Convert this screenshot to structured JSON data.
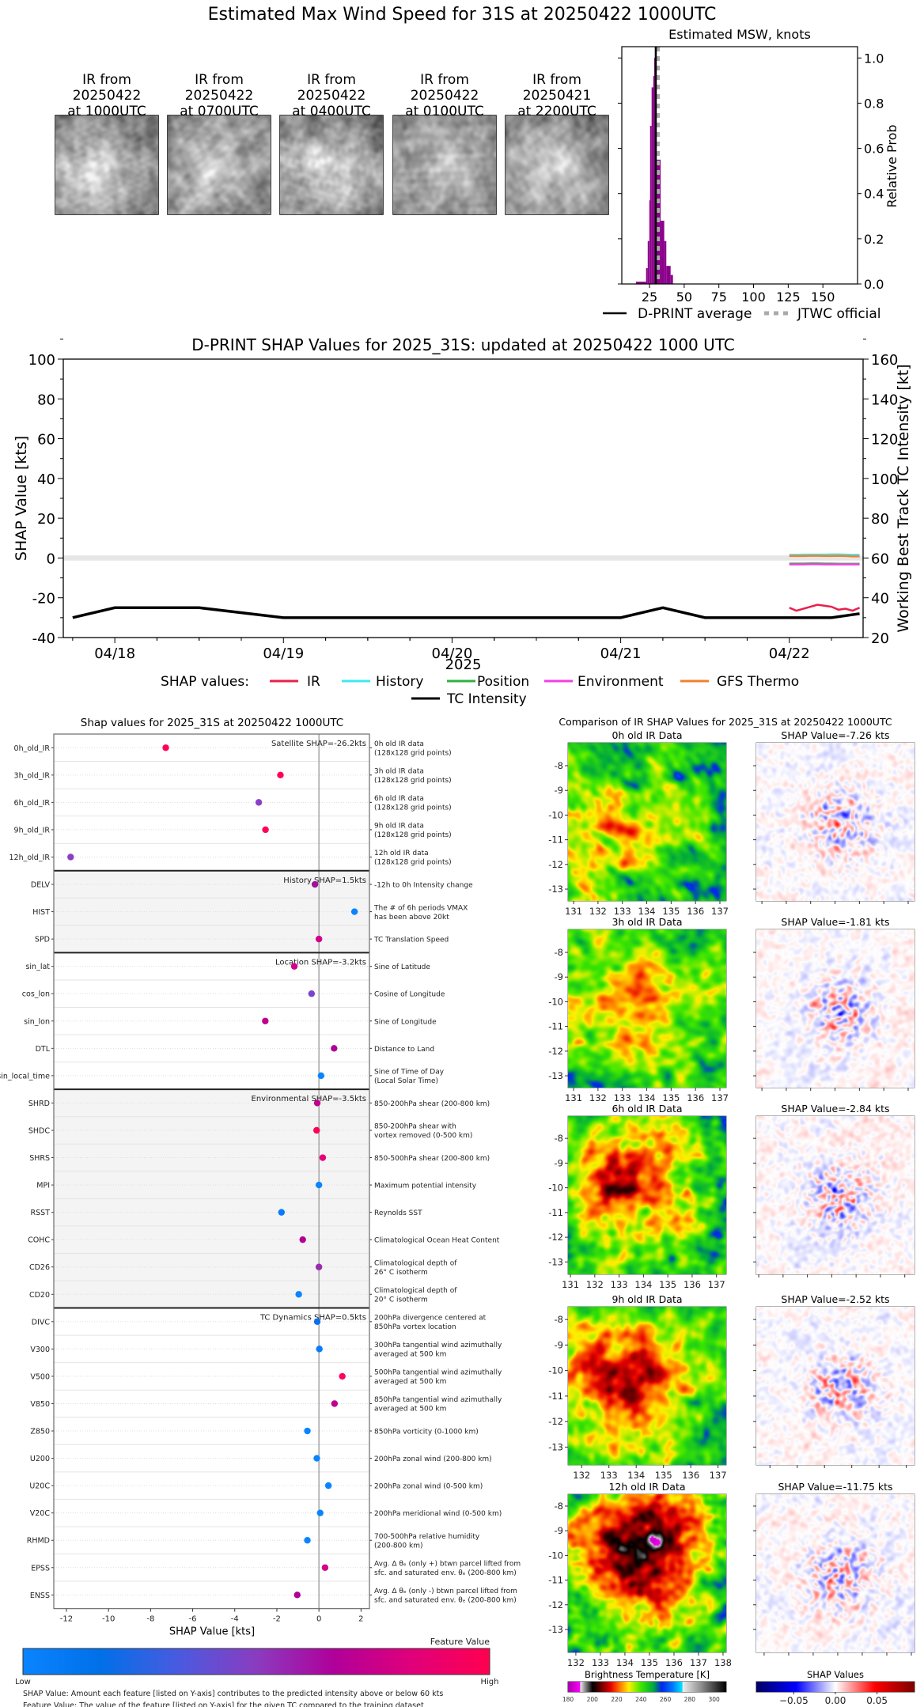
{
  "title": "Estimated Max Wind Speed for 31S at 20250422 1000UTC",
  "ir_thumbnails": [
    {
      "caption": [
        "IR from",
        "20250422",
        "at 1000UTC"
      ]
    },
    {
      "caption": [
        "IR from",
        "20250422",
        "at 0700UTC"
      ]
    },
    {
      "caption": [
        "IR from",
        "20250422",
        "at 0400UTC"
      ]
    },
    {
      "caption": [
        "IR from",
        "20250422",
        "at 0100UTC"
      ]
    },
    {
      "caption": [
        "IR from",
        "20250421",
        "at 2200UTC"
      ]
    }
  ],
  "chart_data": [
    {
      "type": "bar",
      "title": "Estimated MSW, knots",
      "ylabel": "Relative Prob",
      "xlim": [
        5,
        175
      ],
      "ylim": [
        0,
        1.05
      ],
      "xticks": [
        25,
        50,
        75,
        100,
        125,
        150
      ],
      "yticks": [
        "0.0",
        "0.2",
        "0.4",
        "0.6",
        "0.8",
        "1.0"
      ],
      "bar_color": "#8b008b",
      "bins": [
        {
          "from": 15.2,
          "to": 22.5,
          "value": 0.01
        },
        {
          "from": 22.5,
          "to": 23.7,
          "value": 0.07
        },
        {
          "from": 23.7,
          "to": 24.8,
          "value": 0.19
        },
        {
          "from": 24.8,
          "to": 25.4,
          "value": 0.37
        },
        {
          "from": 25.4,
          "to": 26.5,
          "value": 0.7
        },
        {
          "from": 26.5,
          "to": 27.7,
          "value": 0.87
        },
        {
          "from": 27.7,
          "to": 28.4,
          "value": 0.92
        },
        {
          "from": 28.4,
          "to": 29.5,
          "value": 1.0
        },
        {
          "from": 29.5,
          "to": 33.0,
          "value": 0.55
        },
        {
          "from": 33.0,
          "to": 35.6,
          "value": 0.28
        },
        {
          "from": 35.6,
          "to": 37.1,
          "value": 0.19
        },
        {
          "from": 37.1,
          "to": 40.2,
          "value": 0.08
        },
        {
          "from": 40.2,
          "to": 41.9,
          "value": 0.04
        }
      ],
      "dprint_average": 29.5,
      "jtwc_official": 31,
      "legend": [
        {
          "label": "D-PRINT average",
          "color": "#000000",
          "style": "solid"
        },
        {
          "label": "JTWC official",
          "color": "#aaaaaa",
          "style": "dotted"
        }
      ],
      "legend_placement": "bottom"
    },
    {
      "type": "line",
      "title": "D-PRINT SHAP Values for 2025_31S: updated at 20250422 1000 UTC",
      "ylabel": "SHAP Value [kts]",
      "y2label": "Working Best Track TC Intensity [kt]",
      "xlabel": "2025",
      "xlim": [
        "2025-04-17T16:40",
        "2025-04-22T10:30"
      ],
      "ylim": [
        -40,
        100
      ],
      "y2lim": [
        20,
        160
      ],
      "xticks": [
        {
          "date": "2025-04-18T00:00",
          "label": "04/18"
        },
        {
          "date": "2025-04-19T00:00",
          "label": "04/19"
        },
        {
          "date": "2025-04-20T00:00",
          "label": "04/20"
        },
        {
          "date": "2025-04-21T00:00",
          "label": "04/21"
        },
        {
          "date": "2025-04-22T00:00",
          "label": "04/22"
        }
      ],
      "yticks": [
        -40,
        -20,
        0,
        20,
        40,
        60,
        80,
        100
      ],
      "y2ticks": [
        20,
        40,
        60,
        80,
        100,
        120,
        140,
        160
      ],
      "legend_title": "SHAP values:",
      "legend_placement": "bottom",
      "shap_times": [
        "2025-04-22T00:00",
        "2025-04-22T01:00",
        "2025-04-22T02:00",
        "2025-04-22T03:00",
        "2025-04-22T04:00",
        "2025-04-22T05:00",
        "2025-04-22T06:00",
        "2025-04-22T07:00",
        "2025-04-22T08:00",
        "2025-04-22T09:00",
        "2025-04-22T10:00"
      ],
      "series": [
        {
          "name": "IR",
          "color": "#e8204a",
          "values": [
            -25,
            -26.5,
            -25.5,
            -24.5,
            -23.5,
            -24,
            -24.5,
            -26,
            -25.5,
            -26.5,
            -25
          ]
        },
        {
          "name": "History",
          "color": "#40e8f0",
          "values": [
            1.6,
            1.6,
            1.7,
            1.7,
            1.7,
            1.7,
            1.8,
            1.8,
            1.7,
            1.6,
            1.6
          ]
        },
        {
          "name": "Position",
          "color": "#30b040",
          "values": [
            -2.8,
            -2.8,
            -2.8,
            -2.7,
            -2.7,
            -2.8,
            -2.8,
            -2.9,
            -2.9,
            -2.9,
            -2.9
          ]
        },
        {
          "name": "Environment",
          "color": "#f040e0",
          "values": [
            -3.2,
            -3.2,
            -3.2,
            -3.1,
            -3.1,
            -3.2,
            -3.2,
            -3.2,
            -3.2,
            -3.2,
            -3.2
          ]
        },
        {
          "name": "GFS Thermo",
          "color": "#f08030",
          "values": [
            1.0,
            1.0,
            1.0,
            1.1,
            1.1,
            1.0,
            1.0,
            1.1,
            1.0,
            0.8,
            0.8
          ]
        }
      ],
      "intensity": {
        "name": "TC Intensity",
        "color": "#000000",
        "points": [
          {
            "date": "2025-04-17T18:00",
            "kt": 30
          },
          {
            "date": "2025-04-18T00:00",
            "kt": 35
          },
          {
            "date": "2025-04-18T12:00",
            "kt": 35
          },
          {
            "date": "2025-04-19T00:00",
            "kt": 30
          },
          {
            "date": "2025-04-21T00:00",
            "kt": 30
          },
          {
            "date": "2025-04-21T06:00",
            "kt": 35
          },
          {
            "date": "2025-04-21T12:00",
            "kt": 30
          },
          {
            "date": "2025-04-22T06:00",
            "kt": 30
          },
          {
            "date": "2025-04-22T10:00",
            "kt": 32
          }
        ]
      }
    },
    {
      "type": "scatter",
      "title": "Shap values for 2025_31S at 20250422 1000UTC",
      "xlabel": "SHAP Value [kts]",
      "xlim": [
        -12.6,
        2.4
      ],
      "xticks": [
        -12,
        -10,
        -8,
        -6,
        -4,
        -2,
        0,
        2
      ],
      "groups": [
        {
          "label": "Satellite SHAP=-26.2kts",
          "shaded": false,
          "features": [
            {
              "name": "0h_old_IR",
              "desc": [
                "0h old IR data",
                "(128x128 grid points)"
              ],
              "value": -7.28,
              "color": "#ff0055"
            },
            {
              "name": "3h_old_IR",
              "desc": [
                "3h old IR data",
                "(128x128 grid points)"
              ],
              "value": -1.83,
              "color": "#ff0055"
            },
            {
              "name": "6h_old_IR",
              "desc": [
                "6h old IR data",
                "(128x128 grid points)"
              ],
              "value": -2.86,
              "color": "#8a3fc8"
            },
            {
              "name": "9h_old_IR",
              "desc": [
                "9h old IR data",
                "(128x128 grid points)"
              ],
              "value": -2.54,
              "color": "#ff0055"
            },
            {
              "name": "12h_old_IR",
              "desc": [
                "12h old IR data",
                "(128x128 grid points)"
              ],
              "value": -11.8,
              "color": "#8a3fc8"
            }
          ]
        },
        {
          "label": "History SHAP=1.5kts",
          "shaded": true,
          "features": [
            {
              "name": "DELV",
              "desc": [
                "-12h to 0h Intensity change"
              ],
              "value": -0.19,
              "color": "#a0109a"
            },
            {
              "name": "HIST",
              "desc": [
                "The # of 6h periods VMAX",
                "has been above 20kt"
              ],
              "value": 1.69,
              "color": "#0a84ff"
            },
            {
              "name": "SPD",
              "desc": [
                "TC Translation Speed"
              ],
              "value": 0.0,
              "color": "#d4008a"
            }
          ]
        },
        {
          "label": "Location SHAP=-3.2kts",
          "shaded": false,
          "features": [
            {
              "name": "sin_lat",
              "desc": [
                "Sine of Latitude"
              ],
              "value": -1.17,
              "color": "#d4008a"
            },
            {
              "name": "cos_lon",
              "desc": [
                "Cosine of Longitude"
              ],
              "value": -0.35,
              "color": "#7a44d0"
            },
            {
              "name": "sin_lon",
              "desc": [
                "Sine of Longitude"
              ],
              "value": -2.55,
              "color": "#c0008f"
            },
            {
              "name": "DTL",
              "desc": [
                "Distance to Land"
              ],
              "value": 0.72,
              "color": "#b00095"
            },
            {
              "name": "sin_local_time",
              "desc": [
                "Sine of Time of Day",
                "(Local Solar Time)"
              ],
              "value": 0.1,
              "color": "#0a84ff"
            }
          ]
        },
        {
          "label": "Environmental SHAP=-3.5kts",
          "shaded": true,
          "features": [
            {
              "name": "SHRD",
              "desc": [
                "850-200hPa shear (200-800 km)"
              ],
              "value": -0.08,
              "color": "#c0008f"
            },
            {
              "name": "SHDC",
              "desc": [
                "850-200hPa shear with",
                "vortex removed (0-500 km)"
              ],
              "value": -0.11,
              "color": "#ff0055"
            },
            {
              "name": "SHRS",
              "desc": [
                "850-500hPa shear (200-800 km)"
              ],
              "value": 0.18,
              "color": "#e8007a"
            },
            {
              "name": "MPI",
              "desc": [
                "Maximum potential intensity"
              ],
              "value": 0.0,
              "color": "#0a84ff"
            },
            {
              "name": "RSST",
              "desc": [
                "Reynolds SST"
              ],
              "value": -1.78,
              "color": "#0a7aff"
            },
            {
              "name": "COHC",
              "desc": [
                "Climatological Ocean Heat Content"
              ],
              "value": -0.77,
              "color": "#b00095"
            },
            {
              "name": "CD26",
              "desc": [
                "Climatological depth of",
                "26° C isotherm"
              ],
              "value": 0.0,
              "color": "#9a2ab0"
            },
            {
              "name": "CD20",
              "desc": [
                "Climatological depth of",
                "20° C isotherm"
              ],
              "value": -0.96,
              "color": "#0a84ff"
            }
          ]
        },
        {
          "label": "TC Dynamics SHAP=0.5kts",
          "shaded": false,
          "features": [
            {
              "name": "DIVC",
              "desc": [
                "200hPa divergence centered at",
                "850hPa vortex location"
              ],
              "value": -0.08,
              "color": "#0a70e8"
            },
            {
              "name": "V300",
              "desc": [
                "300hPa tangential wind azimuthally",
                "averaged at 500 km"
              ],
              "value": 0.02,
              "color": "#0a7aff"
            },
            {
              "name": "V500",
              "desc": [
                "500hPa tangential wind azimuthally",
                "averaged at 500 km"
              ],
              "value": 1.11,
              "color": "#ff0060"
            },
            {
              "name": "V850",
              "desc": [
                "850hPa tangential wind azimuthally",
                "averaged at 500 km"
              ],
              "value": 0.74,
              "color": "#c0008f"
            },
            {
              "name": "Z850",
              "desc": [
                "850hPa vorticity (0-1000 km)"
              ],
              "value": -0.55,
              "color": "#0a84ff"
            },
            {
              "name": "U200",
              "desc": [
                "200hPa zonal wind (200-800 km)"
              ],
              "value": -0.1,
              "color": "#0a84ff"
            },
            {
              "name": "U20C",
              "desc": [
                "200hPa zonal wind (0-500 km)"
              ],
              "value": 0.45,
              "color": "#0a84ff"
            },
            {
              "name": "V20C",
              "desc": [
                "200hPa meridional wind (0-500 km)"
              ],
              "value": 0.06,
              "color": "#0a84ff"
            },
            {
              "name": "RHMD",
              "desc": [
                "700-500hPa relative humidity",
                "(200-800 km)"
              ],
              "value": -0.55,
              "color": "#0a84ff"
            },
            {
              "name": "EPSS",
              "desc": [
                "Avg. Δ θₑ (only +) btwn parcel lifted from",
                "sfc. and saturated env. θₑ (200-800 km)"
              ],
              "value": 0.29,
              "color": "#d4008a"
            },
            {
              "name": "ENSS",
              "desc": [
                "Avg. Δ θₑ (only -) btwn parcel lifted from",
                "sfc. and saturated env. θₑ (200-800 km)"
              ],
              "value": -1.03,
              "color": "#b00095"
            }
          ]
        }
      ],
      "colorbar": {
        "title": "Feature Value",
        "low": "Low",
        "high": "High",
        "colors": [
          "#0a84ff",
          "#0070e8",
          "#4a5ae0",
          "#8a3cc0",
          "#b0009a",
          "#e0007a",
          "#ff0050"
        ]
      },
      "footnotes": [
        "SHAP Value: Amount each feature [listed on Y-axis] contributes to the predicted intensity above or below 60 kts",
        "Feature Value: The value of the feature [listed on Y-axis] for the given TC compared to the training dataset"
      ]
    }
  ],
  "ir_comparison": {
    "title": "Comparison of IR SHAP Values for 2025_31S at 20250422 1000UTC",
    "panels": [
      {
        "ir_title": "0h old IR Data",
        "shap_title": "SHAP Value=-7.26 kts",
        "lon_range": [
          130.77,
          137.26
        ],
        "lat_range": [
          -13.48,
          -7.07
        ],
        "lon_ticks": [
          131,
          132,
          133,
          134,
          135,
          136,
          137
        ],
        "lat_ticks": [
          -8,
          -9,
          -10,
          -11,
          -12,
          -13
        ]
      },
      {
        "ir_title": "3h old IR Data",
        "shap_title": "SHAP Value=-1.81 kts",
        "lon_range": [
          130.77,
          137.26
        ],
        "lat_range": [
          -13.48,
          -7.07
        ],
        "lon_ticks": [
          131,
          132,
          133,
          134,
          135,
          136,
          137
        ],
        "lat_ticks": [
          -8,
          -9,
          -10,
          -11,
          -12,
          -13
        ]
      },
      {
        "ir_title": "6h old IR Data",
        "shap_title": "SHAP Value=-2.84 kts",
        "lon_range": [
          130.9,
          137.4
        ],
        "lat_range": [
          -13.5,
          -7.1
        ],
        "lon_ticks": [
          131,
          132,
          133,
          134,
          135,
          136,
          137
        ],
        "lat_ticks": [
          -8,
          -9,
          -10,
          -11,
          -12,
          -13
        ]
      },
      {
        "ir_title": "9h old IR Data",
        "shap_title": "SHAP Value=-2.52 kts",
        "lon_range": [
          131.5,
          137.3
        ],
        "lat_range": [
          -13.7,
          -7.5
        ],
        "lon_ticks": [
          132,
          133,
          134,
          135,
          136,
          137
        ],
        "lat_ticks": [
          -8,
          -9,
          -10,
          -11,
          -12,
          -13
        ]
      },
      {
        "ir_title": "12h old IR Data",
        "shap_title": "SHAP Value=-11.75 kts",
        "lon_range": [
          131.68,
          138.13
        ],
        "lat_range": [
          -13.93,
          -7.52
        ],
        "lon_ticks": [
          132,
          133,
          134,
          135,
          136,
          137,
          138
        ],
        "lat_ticks": [
          -8,
          -9,
          -10,
          -11,
          -12,
          -13
        ]
      }
    ],
    "bt_colorbar": {
      "title": "Brightness Temperature [K]",
      "range": [
        180,
        310
      ],
      "ticks": [
        180,
        200,
        220,
        240,
        260,
        280,
        300
      ]
    },
    "shap_colorbar": {
      "title": "SHAP Values",
      "range": [
        -0.095,
        0.095
      ],
      "ticks": [
        "−0.05",
        "0.00",
        "0.05"
      ],
      "tick_values": [
        -0.05,
        0,
        0.05
      ]
    }
  }
}
